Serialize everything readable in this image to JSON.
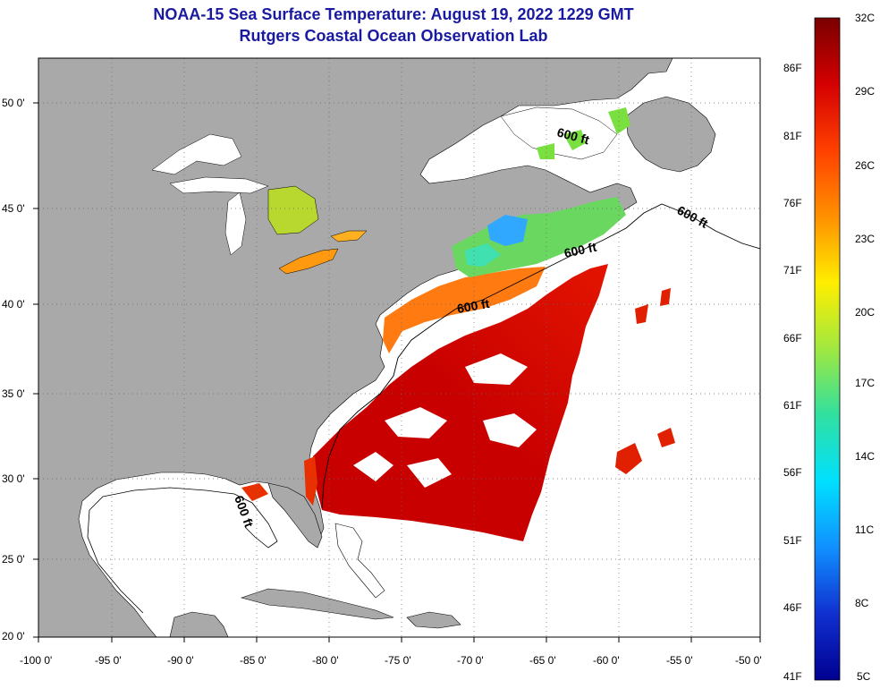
{
  "header": {
    "title": "NOAA-15 Sea Surface Temperature:  August 19, 2022 1229 GMT",
    "subtitle": "Rutgers Coastal Ocean Observation Lab"
  },
  "map": {
    "lat_ticks": [
      "50 0'",
      "45 0'",
      "40 0'",
      "35 0'",
      "30 0'",
      "25 0'",
      "20 0'"
    ],
    "lon_ticks": [
      "-100 0'",
      "-95 0'",
      "-90 0'",
      "-85 0'",
      "-80 0'",
      "-75 0'",
      "-70 0'",
      "-65 0'",
      "-60 0'",
      "-55 0'",
      "-50 0'"
    ],
    "isobath_label": "600 ft",
    "land_color": "#a9a9a9",
    "water_color": "#ffffff"
  },
  "colorbar": {
    "celsius": [
      "32C",
      "29C",
      "26C",
      "23C",
      "20C",
      "17C",
      "14C",
      "11C",
      "8C",
      "5C"
    ],
    "fahrenheit": [
      "86F",
      "81F",
      "76F",
      "71F",
      "66F",
      "61F",
      "56F",
      "51F",
      "46F",
      "41F"
    ],
    "colors": [
      "#7a0000",
      "#d40000",
      "#ff4000",
      "#ff9000",
      "#ffee00",
      "#a0e840",
      "#30e0a0",
      "#00e0ff",
      "#1090ff",
      "#1030d0",
      "#000090"
    ]
  }
}
